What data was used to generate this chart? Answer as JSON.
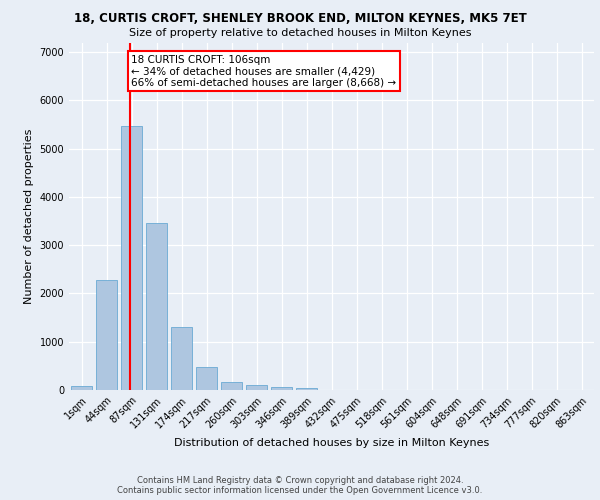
{
  "title": "18, CURTIS CROFT, SHENLEY BROOK END, MILTON KEYNES, MK5 7ET",
  "subtitle": "Size of property relative to detached houses in Milton Keynes",
  "xlabel": "Distribution of detached houses by size in Milton Keynes",
  "ylabel": "Number of detached properties",
  "footer_line1": "Contains HM Land Registry data © Crown copyright and database right 2024.",
  "footer_line2": "Contains public sector information licensed under the Open Government Licence v3.0.",
  "bar_color": "#aec6e0",
  "bar_edge_color": "#6aaad4",
  "background_color": "#e8eef6",
  "grid_color": "#ffffff",
  "annotation_text": "18 CURTIS CROFT: 106sqm\n← 34% of detached houses are smaller (4,429)\n66% of semi-detached houses are larger (8,668) →",
  "annotation_box_color": "#ffffff",
  "annotation_box_edge_color": "red",
  "vline_color": "red",
  "vline_x_bin": 1,
  "categories": [
    "1sqm",
    "44sqm",
    "87sqm",
    "131sqm",
    "174sqm",
    "217sqm",
    "260sqm",
    "303sqm",
    "346sqm",
    "389sqm",
    "432sqm",
    "475sqm",
    "518sqm",
    "561sqm",
    "604sqm",
    "648sqm",
    "691sqm",
    "734sqm",
    "777sqm",
    "820sqm",
    "863sqm"
  ],
  "values": [
    75,
    2280,
    5480,
    3450,
    1310,
    470,
    170,
    100,
    55,
    40,
    0,
    0,
    0,
    0,
    0,
    0,
    0,
    0,
    0,
    0,
    0
  ],
  "ylim": [
    0,
    7200
  ],
  "yticks": [
    0,
    1000,
    2000,
    3000,
    4000,
    5000,
    6000,
    7000
  ],
  "title_fontsize": 8.5,
  "subtitle_fontsize": 8,
  "ylabel_fontsize": 8,
  "xlabel_fontsize": 8,
  "tick_fontsize": 7,
  "footer_fontsize": 6,
  "annot_fontsize": 7.5
}
